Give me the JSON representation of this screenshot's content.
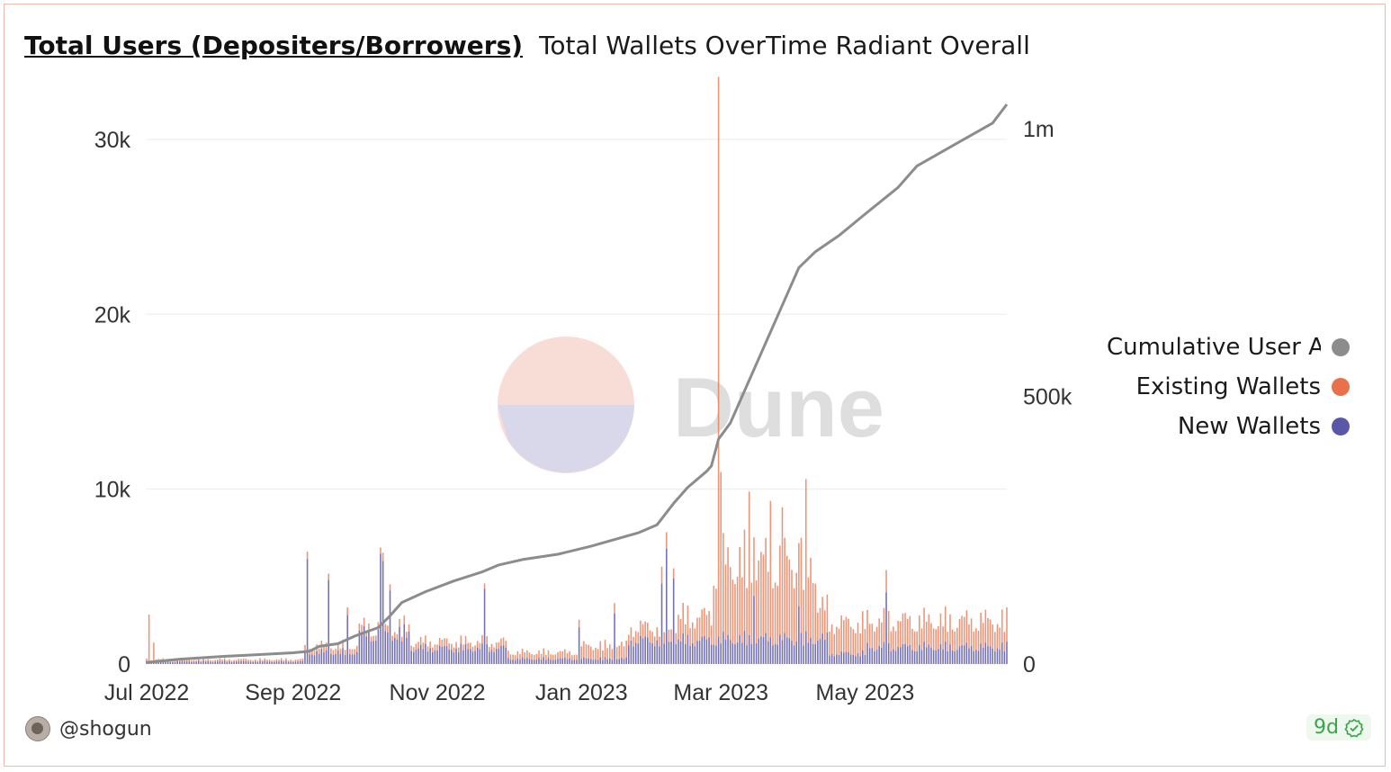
{
  "header": {
    "title": "Total Users (Depositers/Borrowers)",
    "subtitle": "Total Wallets OverTime Radiant Overall"
  },
  "watermark": {
    "text": "Dune"
  },
  "footer": {
    "author": "@shogun",
    "age_badge": "9d"
  },
  "colors": {
    "cumulative": "#8c8c8c",
    "existing": "#e8704a",
    "new": "#5b57a8"
  },
  "chart_data": {
    "type": "bar",
    "x_range": [
      "2022-07-01",
      "2023-06-30"
    ],
    "x_ticks": [
      "Jul 2022",
      "Sep 2022",
      "Nov 2022",
      "Jan 2023",
      "Mar 2023",
      "May 2023"
    ],
    "x_tick_dates": [
      "2022-07-01",
      "2022-09-01",
      "2022-11-01",
      "2023-01-01",
      "2023-03-01",
      "2023-05-01"
    ],
    "y_left": {
      "ylim": [
        0,
        32000
      ],
      "ticks": [
        0,
        10000,
        20000,
        30000
      ],
      "tick_labels": [
        "0",
        "10k",
        "20k",
        "30k"
      ]
    },
    "y_right": {
      "ylim": [
        0,
        1045000
      ],
      "ticks": [
        0,
        500000,
        1000000
      ],
      "tick_labels": [
        "0",
        "500k",
        "1m"
      ]
    },
    "grid": true,
    "legend_position": "right",
    "legend": [
      "Cumulative User A",
      "Existing Wallets",
      "New Wallets"
    ],
    "series": [
      {
        "name": "Cumulative User A",
        "type": "line",
        "axis": "right",
        "points": [
          [
            "2022-07-01",
            3000
          ],
          [
            "2022-07-15",
            9000
          ],
          [
            "2022-08-01",
            14000
          ],
          [
            "2022-08-15",
            17000
          ],
          [
            "2022-09-01",
            21000
          ],
          [
            "2022-09-08",
            24000
          ],
          [
            "2022-09-12",
            33000
          ],
          [
            "2022-09-20",
            38000
          ],
          [
            "2022-09-27",
            52000
          ],
          [
            "2022-10-07",
            68000
          ],
          [
            "2022-10-12",
            90000
          ],
          [
            "2022-10-17",
            115000
          ],
          [
            "2022-10-27",
            135000
          ],
          [
            "2022-11-08",
            155000
          ],
          [
            "2022-11-20",
            172000
          ],
          [
            "2022-11-27",
            185000
          ],
          [
            "2022-12-07",
            195000
          ],
          [
            "2022-12-22",
            205000
          ],
          [
            "2023-01-05",
            220000
          ],
          [
            "2023-01-25",
            245000
          ],
          [
            "2023-02-02",
            260000
          ],
          [
            "2023-02-09",
            300000
          ],
          [
            "2023-02-15",
            330000
          ],
          [
            "2023-02-23",
            360000
          ],
          [
            "2023-02-25",
            370000
          ],
          [
            "2023-02-28",
            420000
          ],
          [
            "2023-03-05",
            450000
          ],
          [
            "2023-03-12",
            520000
          ],
          [
            "2023-03-20",
            600000
          ],
          [
            "2023-03-28",
            680000
          ],
          [
            "2023-04-03",
            740000
          ],
          [
            "2023-04-10",
            770000
          ],
          [
            "2023-04-20",
            800000
          ],
          [
            "2023-05-01",
            840000
          ],
          [
            "2023-05-15",
            890000
          ],
          [
            "2023-05-23",
            930000
          ],
          [
            "2023-06-08",
            970000
          ],
          [
            "2023-06-24",
            1010000
          ],
          [
            "2023-06-30",
            1045000
          ]
        ]
      },
      {
        "name": "Existing Wallets",
        "type": "bar",
        "axis": "left",
        "stacked": true,
        "segments": [
          {
            "from": "2022-07-01",
            "to": "2022-09-05",
            "level": 150
          },
          {
            "from": "2022-09-06",
            "to": "2022-12-31",
            "level": 500
          },
          {
            "from": "2023-01-01",
            "to": "2023-02-10",
            "level": 1000
          },
          {
            "from": "2023-02-11",
            "to": "2023-02-25",
            "level": 1800
          },
          {
            "from": "2023-02-26",
            "to": "2023-04-10",
            "level": 5800
          },
          {
            "from": "2023-04-11",
            "to": "2023-05-01",
            "level": 2300
          },
          {
            "from": "2023-05-02",
            "to": "2023-06-30",
            "level": 2000
          }
        ],
        "spikes": [
          [
            "2022-07-02",
            2700
          ],
          [
            "2022-07-04",
            1100
          ],
          [
            "2023-02-28",
            32000
          ],
          [
            "2023-03-01",
            9800
          ],
          [
            "2023-03-13",
            8200
          ],
          [
            "2023-03-22",
            7800
          ],
          [
            "2023-03-27",
            7600
          ],
          [
            "2023-04-06",
            8700
          ]
        ]
      },
      {
        "name": "New Wallets",
        "type": "bar",
        "axis": "left",
        "stacked": true,
        "segments": [
          {
            "from": "2022-07-01",
            "to": "2022-09-05",
            "level": 200
          },
          {
            "from": "2022-09-06",
            "to": "2022-09-28",
            "level": 900
          },
          {
            "from": "2022-09-29",
            "to": "2022-10-20",
            "level": 2300
          },
          {
            "from": "2022-10-21",
            "to": "2022-11-30",
            "level": 1200
          },
          {
            "from": "2022-12-01",
            "to": "2023-01-20",
            "level": 400
          },
          {
            "from": "2023-01-21",
            "to": "2023-02-25",
            "level": 1800
          },
          {
            "from": "2023-02-26",
            "to": "2023-04-15",
            "level": 1900
          },
          {
            "from": "2023-04-16",
            "to": "2023-05-01",
            "level": 800
          },
          {
            "from": "2023-05-02",
            "to": "2023-06-30",
            "level": 1300
          }
        ],
        "spikes": [
          [
            "2022-09-07",
            6000
          ],
          [
            "2022-09-16",
            4800
          ],
          [
            "2022-09-24",
            2800
          ],
          [
            "2022-10-08",
            6300
          ],
          [
            "2022-10-09",
            5900
          ],
          [
            "2022-10-12",
            4200
          ],
          [
            "2022-11-21",
            4300
          ],
          [
            "2022-12-31",
            2100
          ],
          [
            "2023-01-15",
            2900
          ],
          [
            "2023-02-04",
            4600
          ],
          [
            "2023-02-06",
            6600
          ],
          [
            "2023-02-09",
            4900
          ],
          [
            "2023-03-15",
            3900
          ],
          [
            "2023-04-03",
            3300
          ],
          [
            "2023-05-10",
            4100
          ]
        ]
      }
    ]
  }
}
